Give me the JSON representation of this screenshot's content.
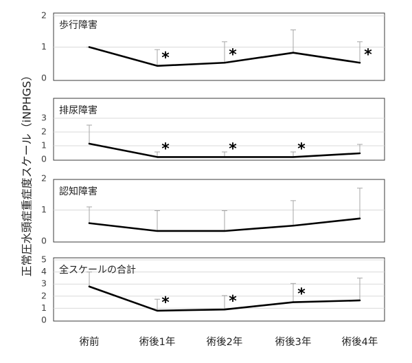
{
  "chart_data": {
    "type": "line",
    "ylabel": "正常圧水頭症重症度スケール（iNPHGS）",
    "categories": [
      "術前",
      "術後1年",
      "術後2年",
      "術後3年",
      "術後4年"
    ],
    "panels": [
      {
        "title": "歩行障害",
        "ylim": [
          0,
          2
        ],
        "yticks": [
          0,
          1,
          2
        ],
        "values": [
          1.0,
          0.4,
          0.5,
          0.82,
          0.5
        ],
        "err_upper": [
          1.0,
          0.92,
          1.17,
          1.55,
          1.17
        ],
        "significant": [
          false,
          true,
          true,
          false,
          true
        ]
      },
      {
        "title": "排尿障害",
        "ylim": [
          0,
          3
        ],
        "yticks": [
          0,
          1,
          2,
          3
        ],
        "values": [
          1.15,
          0.18,
          0.18,
          0.18,
          0.45
        ],
        "err_upper": [
          2.5,
          0.55,
          0.55,
          0.55,
          1.1
        ],
        "significant": [
          false,
          true,
          true,
          true,
          false
        ]
      },
      {
        "title": "認知障害",
        "ylim": [
          0,
          2
        ],
        "yticks": [
          0,
          1,
          2
        ],
        "values": [
          0.58,
          0.33,
          0.33,
          0.5,
          0.73
        ],
        "err_upper": [
          1.1,
          0.98,
          0.98,
          1.3,
          1.7
        ],
        "significant": [
          false,
          false,
          false,
          false,
          false
        ]
      },
      {
        "title": "全スケールの合計",
        "ylim": [
          0,
          5
        ],
        "yticks": [
          0,
          1,
          2,
          3,
          4,
          5
        ],
        "values": [
          2.8,
          0.8,
          0.9,
          1.5,
          1.65
        ],
        "err_upper": [
          4.0,
          1.75,
          2.05,
          3.05,
          3.5
        ],
        "significant": [
          false,
          true,
          true,
          true,
          false
        ]
      }
    ],
    "significance_marker": "*",
    "grid": true,
    "legend": "none"
  }
}
